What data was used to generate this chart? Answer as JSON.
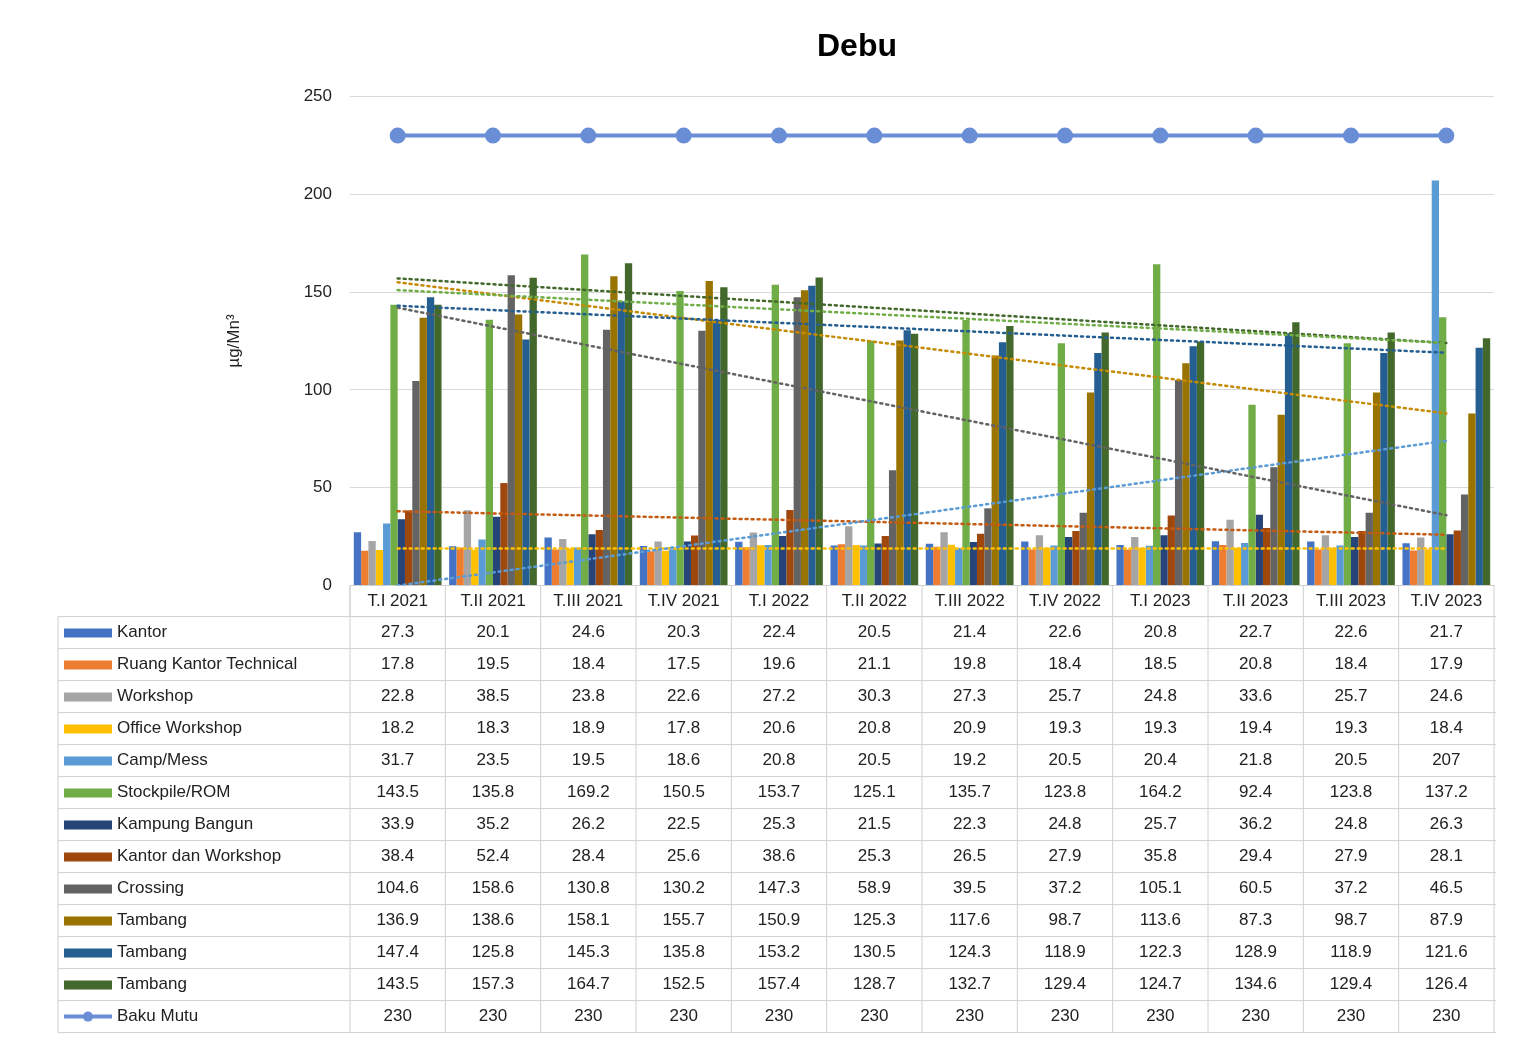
{
  "chart_data": {
    "type": "bar",
    "title": "Debu",
    "ylabel": "µg/Mn³",
    "categories": [
      "T.I 2021",
      "T.II 2021",
      "T.III 2021",
      "T.IV 2021",
      "T.I 2022",
      "T.II 2022",
      "T.III 2022",
      "T.IV 2022",
      "T.I 2023",
      "T.II 2023",
      "T.III 2023",
      "T.IV 2023"
    ],
    "ylim": [
      0,
      250
    ],
    "yticks": [
      0,
      50,
      100,
      150,
      200,
      250
    ],
    "grid": "y",
    "legend": "bottom",
    "data_labels": true,
    "series": [
      {
        "name": "Kantor",
        "color": "#4472c4",
        "values": [
          27.3,
          20.1,
          24.6,
          20.3,
          22.4,
          20.5,
          21.4,
          22.6,
          20.8,
          22.7,
          22.6,
          21.7
        ]
      },
      {
        "name": "Ruang Kantor Technical",
        "color": "#ed7d31",
        "values": [
          17.8,
          19.5,
          18.4,
          17.5,
          19.6,
          21.1,
          19.8,
          18.4,
          18.5,
          20.8,
          18.4,
          17.9
        ]
      },
      {
        "name": "Workshop",
        "color": "#a5a5a5",
        "values": [
          22.8,
          38.5,
          23.8,
          22.6,
          27.2,
          30.3,
          27.3,
          25.7,
          24.8,
          33.6,
          25.7,
          24.6
        ]
      },
      {
        "name": "Office Workshop",
        "color": "#ffc000",
        "values": [
          18.2,
          18.3,
          18.9,
          17.8,
          20.6,
          20.8,
          20.9,
          19.3,
          19.3,
          19.4,
          19.3,
          18.4
        ]
      },
      {
        "name": "Camp/Mess",
        "color": "#5b9bd5",
        "values": [
          31.7,
          23.5,
          19.5,
          18.6,
          20.8,
          20.5,
          19.2,
          20.5,
          20.4,
          21.8,
          20.5,
          207
        ]
      },
      {
        "name": "Stockpile/ROM",
        "color": "#70ad47",
        "values": [
          143.5,
          135.8,
          169.2,
          150.5,
          153.7,
          125.1,
          135.7,
          123.8,
          164.2,
          92.4,
          123.8,
          137.2
        ]
      },
      {
        "name": "Kampung Bangun",
        "color": "#264478",
        "values": [
          33.9,
          35.2,
          26.2,
          22.5,
          25.3,
          21.5,
          22.3,
          24.8,
          25.7,
          36.2,
          24.8,
          26.3
        ]
      },
      {
        "name": "Kantor dan Workshop",
        "color": "#9e480e",
        "values": [
          38.4,
          52.4,
          28.4,
          25.6,
          38.6,
          25.3,
          26.5,
          27.9,
          35.8,
          29.4,
          27.9,
          28.1
        ]
      },
      {
        "name": "Crossing",
        "color": "#636363",
        "values": [
          104.6,
          158.6,
          130.8,
          130.2,
          147.3,
          58.9,
          39.5,
          37.2,
          105.1,
          60.5,
          37.2,
          46.5
        ]
      },
      {
        "name": "Tambang",
        "color": "#997300",
        "values": [
          136.9,
          138.6,
          158.1,
          155.7,
          150.9,
          125.3,
          117.6,
          98.7,
          113.6,
          87.3,
          98.7,
          87.9
        ]
      },
      {
        "name": "Tambang",
        "color": "#255e91",
        "values": [
          147.4,
          125.8,
          145.3,
          135.8,
          153.2,
          130.5,
          124.3,
          118.9,
          122.3,
          128.9,
          118.9,
          121.6
        ]
      },
      {
        "name": "Tambang",
        "color": "#43682b",
        "values": [
          143.5,
          157.3,
          164.7,
          152.5,
          157.4,
          128.7,
          132.7,
          129.4,
          124.7,
          134.6,
          129.4,
          126.4
        ]
      },
      {
        "name": "Baku Mutu",
        "type": "line",
        "color": "#6a8ed6",
        "marker": "circle",
        "line_style": "solid",
        "values": [
          230,
          230,
          230,
          230,
          230,
          230,
          230,
          230,
          230,
          230,
          230,
          230
        ]
      },
      {
        "type": "line",
        "color": "#70ad47",
        "marker": "none",
        "line_style": "dotted",
        "values": [
          151,
          null,
          null,
          null,
          null,
          null,
          null,
          null,
          null,
          null,
          null,
          124
        ],
        "value_labels": [
          null,
          null,
          null,
          null,
          null,
          null,
          null,
          null,
          null,
          null,
          null,
          null
        ]
      },
      {
        "type": "line",
        "color": "#43682b",
        "marker": "none",
        "line_style": "dotted",
        "values": [
          157,
          null,
          null,
          null,
          null,
          null,
          null,
          null,
          null,
          null,
          null,
          124
        ],
        "value_labels": [
          null,
          null,
          null,
          null,
          null,
          null,
          null,
          null,
          null,
          null,
          null,
          null
        ]
      },
      {
        "type": "line",
        "color": "#255e91",
        "marker": "none",
        "line_style": "dotted",
        "values": [
          143,
          null,
          null,
          null,
          null,
          null,
          null,
          null,
          null,
          null,
          null,
          119
        ],
        "value_labels": [
          null,
          null,
          null,
          null,
          null,
          null,
          null,
          null,
          null,
          null,
          null,
          null
        ]
      },
      {
        "type": "line",
        "color": "#c58a00",
        "marker": "none",
        "line_style": "dotted",
        "values": [
          155,
          null,
          null,
          null,
          null,
          null,
          null,
          null,
          null,
          null,
          null,
          88
        ],
        "value_labels": [
          null,
          null,
          null,
          null,
          null,
          null,
          null,
          null,
          null,
          null,
          null,
          null
        ]
      },
      {
        "type": "line",
        "color": "#636363",
        "marker": "none",
        "line_style": "dotted",
        "values": [
          142,
          null,
          null,
          null,
          null,
          null,
          null,
          null,
          null,
          null,
          null,
          36
        ],
        "value_labels": [
          null,
          null,
          null,
          null,
          null,
          null,
          null,
          null,
          null,
          null,
          null,
          null
        ]
      },
      {
        "type": "line",
        "color": "#5b9bd5",
        "marker": "none",
        "line_style": "dotted",
        "values": [
          0,
          null,
          null,
          null,
          null,
          null,
          null,
          null,
          null,
          null,
          null,
          74
        ],
        "value_labels": [
          null,
          null,
          null,
          null,
          null,
          null,
          null,
          null,
          null,
          null,
          null,
          null
        ]
      },
      {
        "type": "line",
        "color": "#c55a11",
        "marker": "none",
        "line_style": "dotted",
        "values": [
          38,
          null,
          null,
          null,
          null,
          null,
          null,
          null,
          null,
          null,
          null,
          26
        ],
        "value_labels": [
          null,
          null,
          null,
          null,
          null,
          null,
          null,
          null,
          null,
          null,
          null,
          null
        ]
      },
      {
        "type": "line",
        "color": "#ffc000",
        "marker": "none",
        "line_style": "dotted",
        "values": [
          19,
          null,
          null,
          null,
          null,
          null,
          null,
          null,
          null,
          null,
          null,
          19
        ],
        "value_labels": [
          null,
          null,
          null,
          null,
          null,
          null,
          null,
          null,
          null,
          null,
          null,
          null
        ]
      }
    ]
  }
}
